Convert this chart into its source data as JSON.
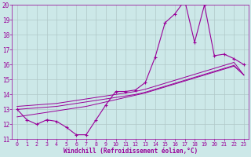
{
  "x": [
    0,
    1,
    2,
    3,
    4,
    5,
    6,
    7,
    8,
    9,
    10,
    11,
    12,
    13,
    14,
    15,
    16,
    17,
    18,
    19,
    20,
    21,
    22,
    23
  ],
  "y_main": [
    13.0,
    12.3,
    12.0,
    12.3,
    12.2,
    11.8,
    11.3,
    11.3,
    12.3,
    13.3,
    14.2,
    14.2,
    14.3,
    14.8,
    16.5,
    18.8,
    19.4,
    20.3,
    17.5,
    20.0,
    16.6,
    16.7,
    16.4,
    16.0
  ],
  "y_line1": [
    12.5,
    12.6,
    12.7,
    12.8,
    12.9,
    13.0,
    13.1,
    13.2,
    13.35,
    13.5,
    13.65,
    13.8,
    13.95,
    14.1,
    14.3,
    14.5,
    14.7,
    14.9,
    15.1,
    15.3,
    15.5,
    15.7,
    15.9,
    15.3
  ],
  "y_line2": [
    13.0,
    13.05,
    13.1,
    13.15,
    13.2,
    13.3,
    13.4,
    13.5,
    13.6,
    13.7,
    13.8,
    13.9,
    14.0,
    14.15,
    14.35,
    14.55,
    14.75,
    14.95,
    15.15,
    15.35,
    15.55,
    15.75,
    15.95,
    15.3
  ],
  "y_line3": [
    13.2,
    13.25,
    13.3,
    13.35,
    13.4,
    13.5,
    13.6,
    13.7,
    13.8,
    13.9,
    14.0,
    14.1,
    14.2,
    14.35,
    14.55,
    14.75,
    14.95,
    15.15,
    15.35,
    15.55,
    15.75,
    15.95,
    16.15,
    15.3
  ],
  "line_color": "#990099",
  "bg_color": "#cce8e8",
  "grid_color": "#b0c8c8",
  "ylim": [
    11,
    20
  ],
  "xlim": [
    -0.5,
    23.5
  ],
  "yticks": [
    11,
    12,
    13,
    14,
    15,
    16,
    17,
    18,
    19,
    20
  ],
  "xticks": [
    0,
    1,
    2,
    3,
    4,
    5,
    6,
    7,
    8,
    9,
    10,
    11,
    12,
    13,
    14,
    15,
    16,
    17,
    18,
    19,
    20,
    21,
    22,
    23
  ],
  "xlabel": "Windchill (Refroidissement éolien,°C)",
  "xlabel_color": "#990099",
  "tick_color": "#990099",
  "ytick_fontsize": 5.5,
  "xtick_fontsize": 4.8
}
